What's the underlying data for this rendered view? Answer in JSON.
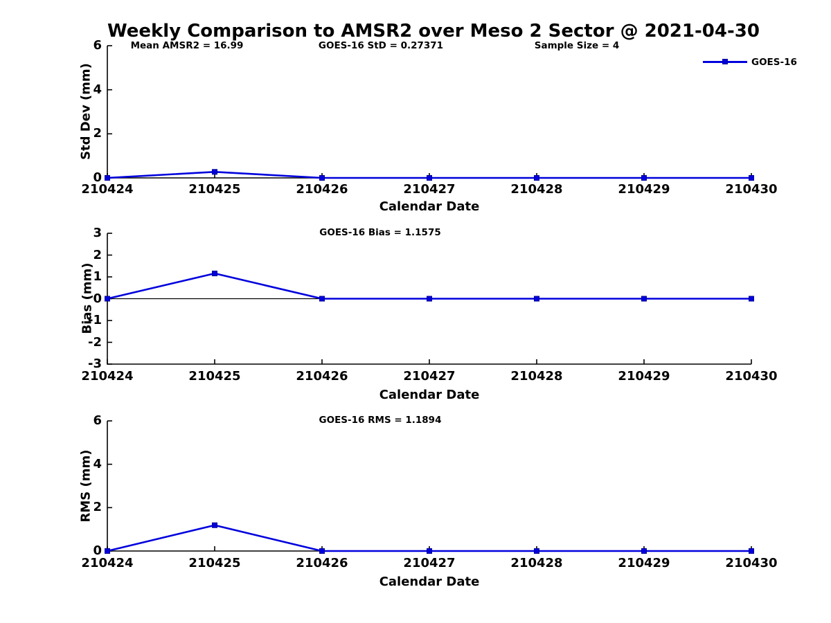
{
  "title": "Weekly Comparison to AMSR2 over Meso 2 Sector @ 2021-04-30",
  "colors": {
    "series": "#0000DD",
    "marker_edge": "#000099",
    "axis": "#000000",
    "text": "#000000",
    "background": "#FFFFFF"
  },
  "legend": {
    "label": "GOES-16",
    "position": "top-right-inside-first-subplot"
  },
  "chart_data": [
    {
      "type": "line",
      "subplot": "std-dev",
      "annotations": [
        "Mean AMSR2 = 16.99",
        "GOES-16 StD = 0.27371",
        "Sample Size = 4"
      ],
      "ylabel": "Std Dev (mm)",
      "xlabel": "Calendar Date",
      "categories": [
        "210424",
        "210425",
        "210426",
        "210427",
        "210428",
        "210429",
        "210430"
      ],
      "series": [
        {
          "name": "GOES-16",
          "values": [
            0,
            0.27371,
            0,
            0,
            0,
            0,
            0
          ]
        }
      ],
      "ylim": [
        0,
        6
      ],
      "yticks": [
        0,
        2,
        4,
        6
      ],
      "grid": false,
      "zero_line": false
    },
    {
      "type": "line",
      "subplot": "bias",
      "annotations": [
        "GOES-16 Bias  = 1.1575"
      ],
      "ylabel": "Bias (mm)",
      "xlabel": "Calendar Date",
      "categories": [
        "210424",
        "210425",
        "210426",
        "210427",
        "210428",
        "210429",
        "210430"
      ],
      "series": [
        {
          "name": "GOES-16",
          "values": [
            0,
            1.1575,
            0,
            0,
            0,
            0,
            0
          ]
        }
      ],
      "ylim": [
        -3,
        3
      ],
      "yticks": [
        -3,
        -2,
        -1,
        0,
        1,
        2,
        3
      ],
      "grid": false,
      "zero_line": true
    },
    {
      "type": "line",
      "subplot": "rms",
      "annotations": [
        "GOES-16 RMS = 1.1894"
      ],
      "ylabel": "RMS (mm)",
      "xlabel": "Calendar Date",
      "categories": [
        "210424",
        "210425",
        "210426",
        "210427",
        "210428",
        "210429",
        "210430"
      ],
      "series": [
        {
          "name": "GOES-16",
          "values": [
            0,
            1.1894,
            0,
            0,
            0,
            0,
            0
          ]
        }
      ],
      "ylim": [
        0,
        6
      ],
      "yticks": [
        0,
        2,
        4,
        6
      ],
      "grid": false,
      "zero_line": false
    }
  ]
}
